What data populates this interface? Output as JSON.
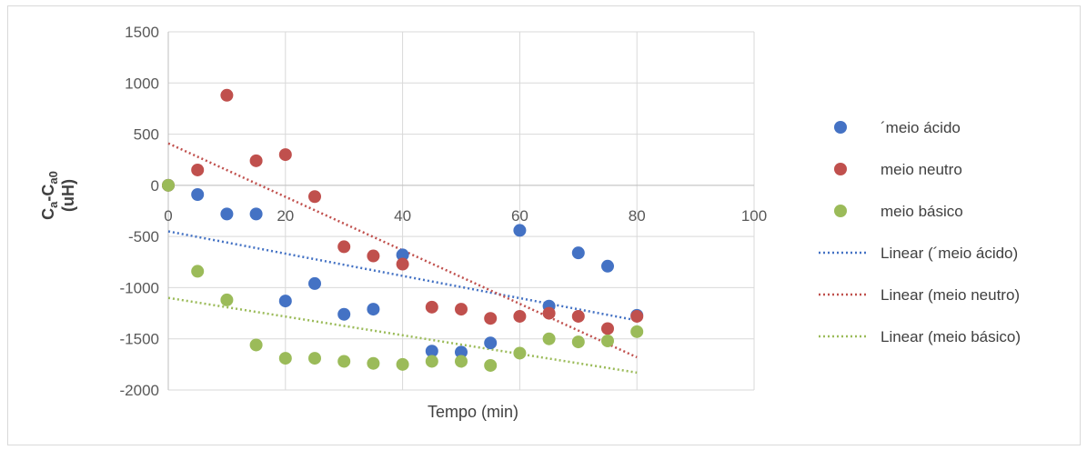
{
  "chart_data": {
    "type": "scatter",
    "xlabel": "Tempo (min)",
    "ylabel": {
      "line1_main": "C",
      "line1_sub1": "a",
      "line1_dash": "-C",
      "line1_sub2": "a0",
      "line2": "(uH)"
    },
    "xlim": [
      0,
      100
    ],
    "ylim": [
      -2000,
      1500
    ],
    "xticks": [
      "0",
      "20",
      "40",
      "60",
      "80",
      "100"
    ],
    "yticks": [
      "1500",
      "1000",
      "500",
      "0",
      "-500",
      "-1000",
      "-1500",
      "-2000"
    ],
    "grid": {
      "horizontal": true,
      "vertical": true
    },
    "legend": "right",
    "series": [
      {
        "name": "´meio ácido",
        "color": "#4472C4",
        "x": [
          0,
          5,
          10,
          15,
          20,
          25,
          30,
          35,
          40,
          45,
          50,
          55,
          60,
          65,
          70,
          75,
          80
        ],
        "y": [
          0,
          -90,
          -280,
          -280,
          -1130,
          -960,
          -1260,
          -1210,
          -680,
          -1620,
          -1630,
          -1540,
          -440,
          -1180,
          -660,
          -790,
          -1270
        ]
      },
      {
        "name": "meio neutro",
        "color": "#C0504D",
        "x": [
          0,
          5,
          10,
          15,
          20,
          25,
          30,
          35,
          40,
          45,
          50,
          55,
          60,
          65,
          70,
          75,
          80
        ],
        "y": [
          0,
          150,
          880,
          240,
          300,
          -110,
          -600,
          -690,
          -770,
          -1190,
          -1210,
          -1300,
          -1280,
          -1250,
          -1280,
          -1400,
          -1280
        ]
      },
      {
        "name": "meio básico",
        "color": "#9BBB59",
        "x": [
          0,
          5,
          10,
          15,
          20,
          25,
          30,
          35,
          40,
          45,
          50,
          55,
          60,
          65,
          70,
          75,
          80
        ],
        "y": [
          0,
          -840,
          -1120,
          -1560,
          -1690,
          -1690,
          -1720,
          -1740,
          -1750,
          -1720,
          -1720,
          -1760,
          -1640,
          -1500,
          -1530,
          -1520,
          -1430
        ]
      }
    ],
    "trendlines": [
      {
        "name": "Linear (´meio ácido)",
        "color": "#4472C4",
        "x": [
          0,
          80
        ],
        "y": [
          -450,
          -1320
        ]
      },
      {
        "name": "Linear (meio neutro)",
        "color": "#C0504D",
        "x": [
          0,
          80
        ],
        "y": [
          410,
          -1680
        ]
      },
      {
        "name": "Linear (meio básico)",
        "color": "#9BBB59",
        "x": [
          0,
          80
        ],
        "y": [
          -1100,
          -1830
        ]
      }
    ]
  }
}
